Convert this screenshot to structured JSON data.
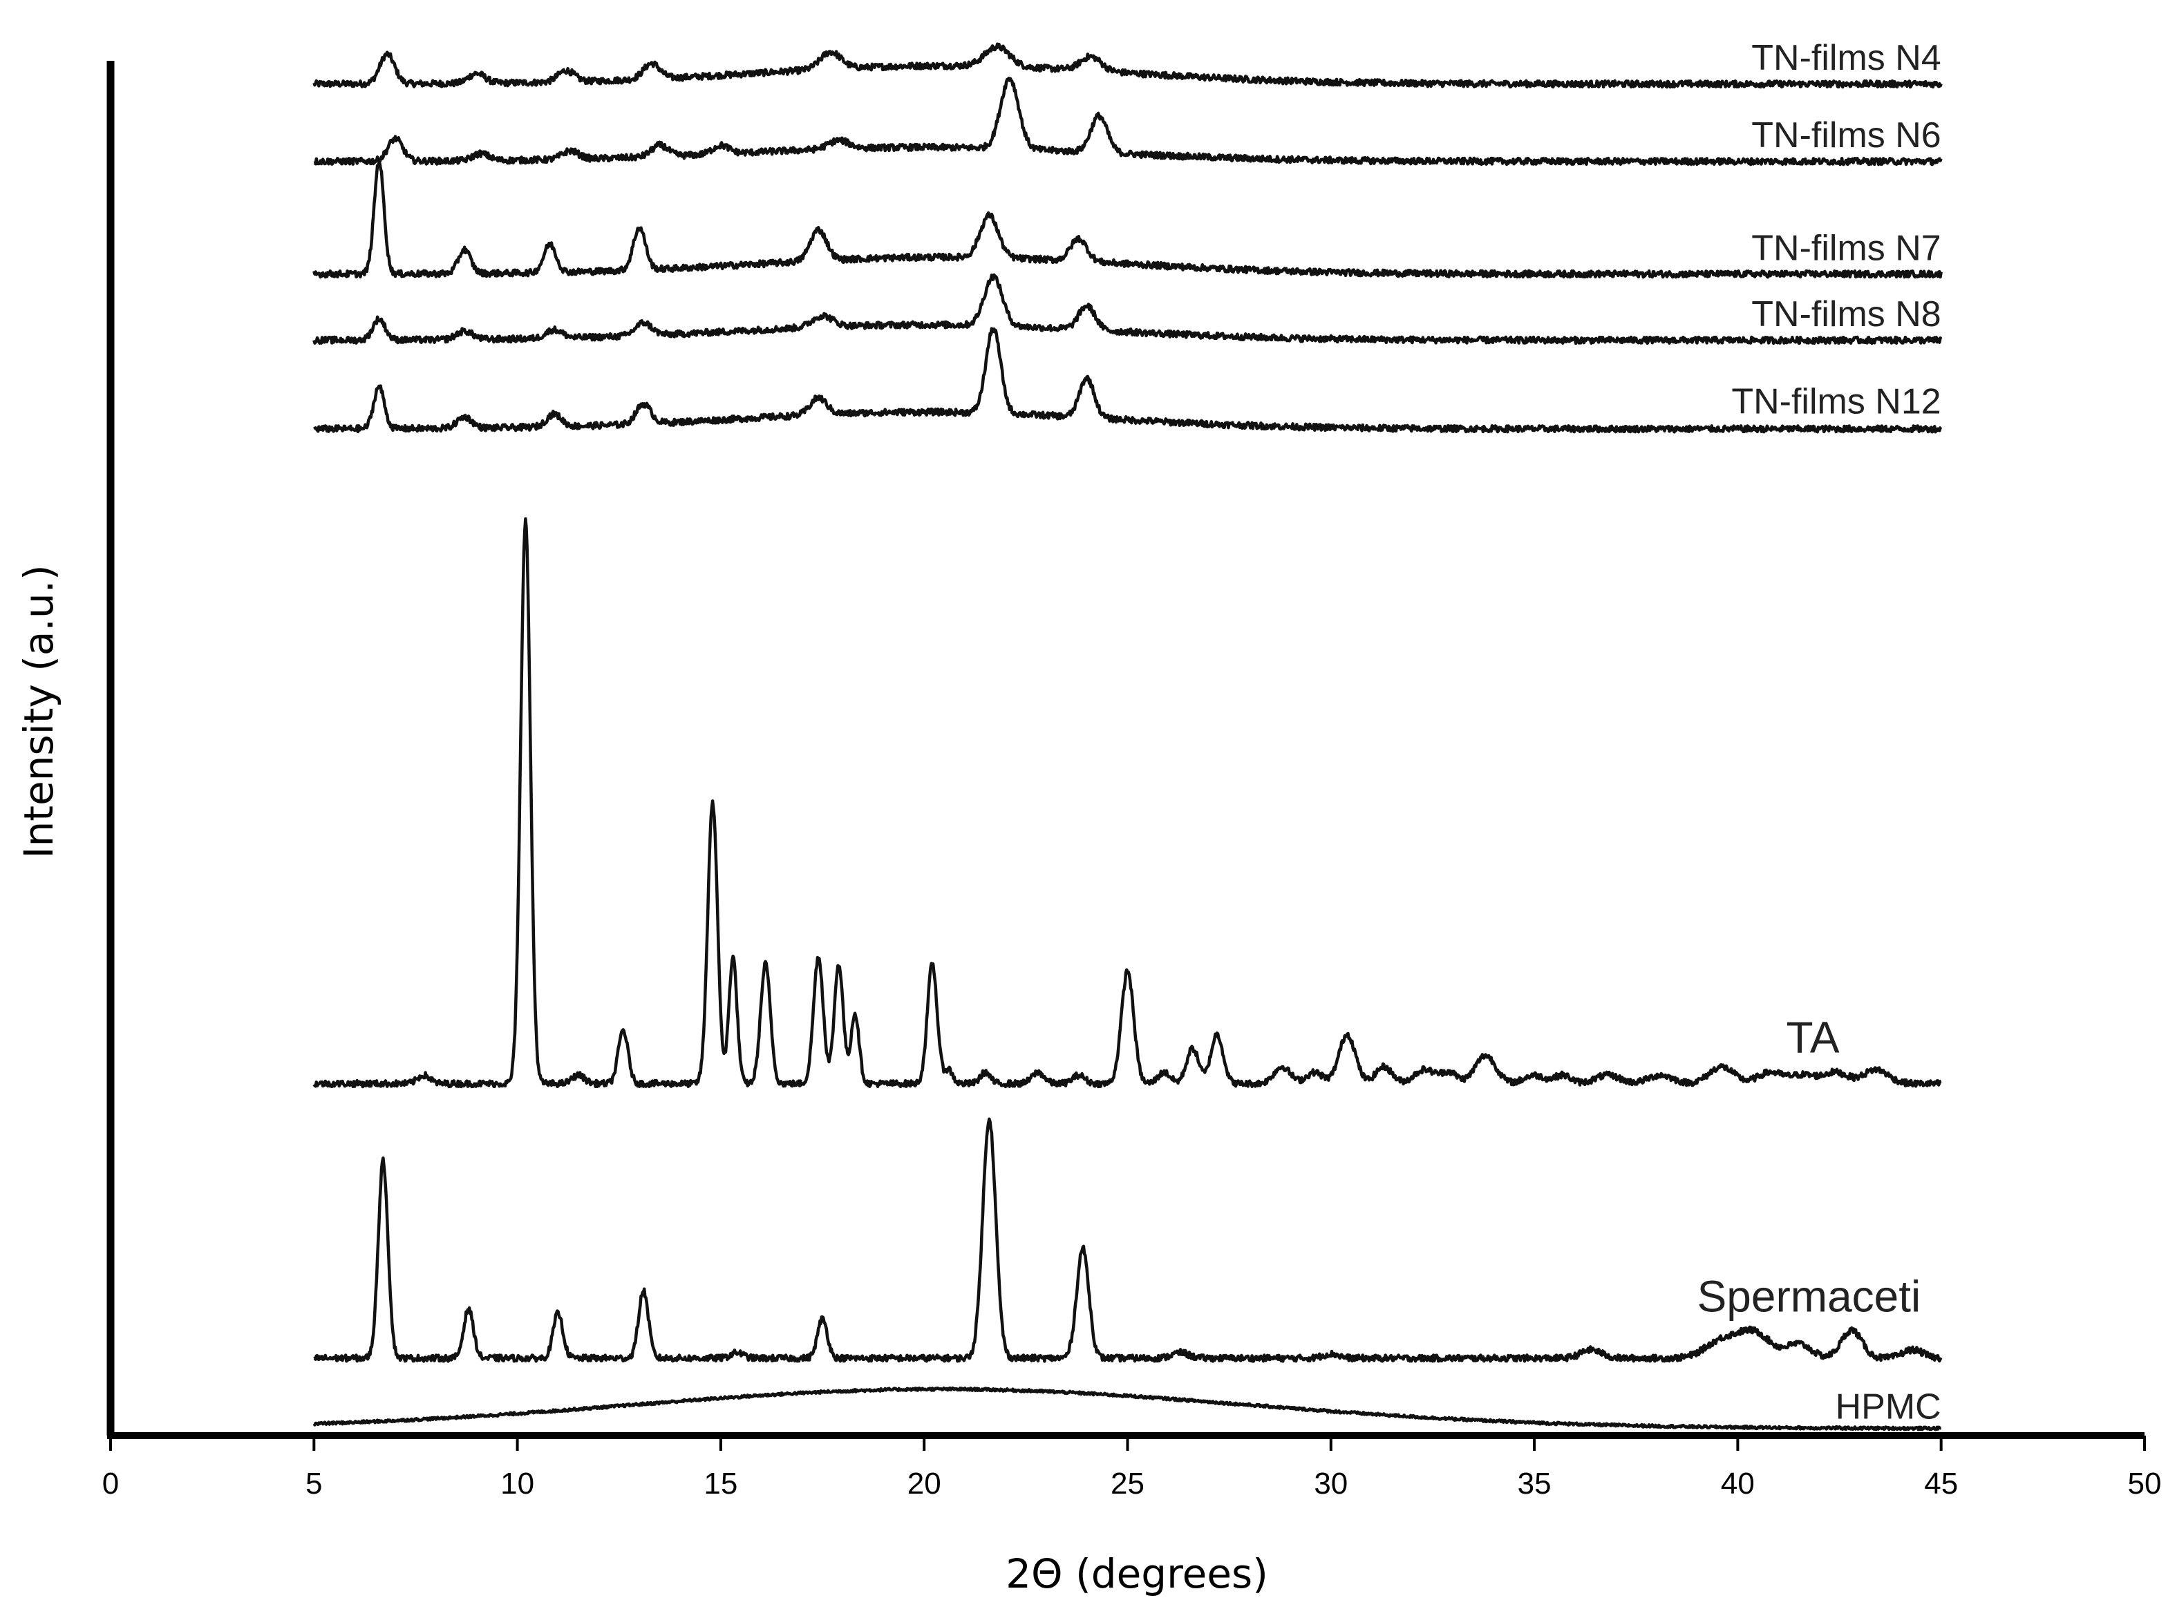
{
  "chart_data": {
    "type": "line",
    "title": "",
    "xlabel": "2Θ (degrees)",
    "ylabel": "Intensity (a.u.)",
    "xlim": [
      0,
      50
    ],
    "xticks": [
      0,
      5,
      10,
      15,
      20,
      25,
      30,
      35,
      40,
      45,
      50
    ],
    "x_range_data": [
      5,
      45
    ],
    "grid": false,
    "legend": "none (series labelled directly at right end of each trace)",
    "y_scale": "arbitrary units, traces vertically offset",
    "series": [
      {
        "name": "TN-films N4",
        "baseline": 0.96,
        "amp": 0.016,
        "noise": 0.0022,
        "halo": {
          "center": 20.5,
          "width": 4.5,
          "height": 0.013
        },
        "peaks": [
          [
            6.8,
            0.021,
            0.18
          ],
          [
            9.0,
            0.007,
            0.2
          ],
          [
            11.2,
            0.008,
            0.2
          ],
          [
            13.3,
            0.011,
            0.2
          ],
          [
            17.7,
            0.012,
            0.25
          ],
          [
            21.8,
            0.014,
            0.3
          ],
          [
            24.1,
            0.01,
            0.25
          ]
        ]
      },
      {
        "name": "TN-films N6",
        "baseline": 0.905,
        "amp": 0.016,
        "noise": 0.0022,
        "halo": {
          "center": 20.0,
          "width": 4.5,
          "height": 0.01
        },
        "peaks": [
          [
            7.0,
            0.016,
            0.18
          ],
          [
            9.1,
            0.005,
            0.2
          ],
          [
            11.3,
            0.006,
            0.2
          ],
          [
            13.5,
            0.008,
            0.2
          ],
          [
            15.0,
            0.006,
            0.2
          ],
          [
            17.9,
            0.006,
            0.25
          ],
          [
            22.1,
            0.05,
            0.22
          ],
          [
            24.3,
            0.026,
            0.2
          ]
        ]
      },
      {
        "name": "TN-films N7",
        "baseline": 0.825,
        "amp": 0.016,
        "noise": 0.0022,
        "halo": {
          "center": 20.5,
          "width": 4.5,
          "height": 0.012
        },
        "peaks": [
          [
            6.6,
            0.08,
            0.12
          ],
          [
            8.7,
            0.017,
            0.15
          ],
          [
            10.8,
            0.02,
            0.15
          ],
          [
            13.0,
            0.03,
            0.15
          ],
          [
            17.4,
            0.022,
            0.2
          ],
          [
            21.6,
            0.03,
            0.22
          ],
          [
            23.8,
            0.016,
            0.2
          ]
        ]
      },
      {
        "name": "TN-films N8",
        "baseline": 0.778,
        "amp": 0.016,
        "noise": 0.0022,
        "halo": {
          "center": 20.0,
          "width": 4.5,
          "height": 0.011
        },
        "peaks": [
          [
            6.6,
            0.015,
            0.15
          ],
          [
            8.7,
            0.006,
            0.2
          ],
          [
            10.9,
            0.006,
            0.2
          ],
          [
            13.1,
            0.009,
            0.2
          ],
          [
            17.5,
            0.008,
            0.25
          ],
          [
            21.7,
            0.035,
            0.22
          ],
          [
            24.0,
            0.017,
            0.2
          ]
        ]
      },
      {
        "name": "TN-films N12",
        "baseline": 0.715,
        "amp": 0.016,
        "noise": 0.0022,
        "halo": {
          "center": 20.0,
          "width": 4.5,
          "height": 0.012
        },
        "peaks": [
          [
            6.6,
            0.03,
            0.13
          ],
          [
            8.7,
            0.008,
            0.18
          ],
          [
            10.9,
            0.009,
            0.18
          ],
          [
            13.1,
            0.014,
            0.18
          ],
          [
            17.4,
            0.012,
            0.2
          ],
          [
            21.7,
            0.06,
            0.18
          ],
          [
            24.0,
            0.028,
            0.18
          ]
        ]
      },
      {
        "name": "TA",
        "baseline": 0.25,
        "amp": 0.4,
        "noise": 0.0022,
        "halo": {
          "center": 20.0,
          "width": 6.0,
          "height": 0.0
        },
        "peaks": [
          [
            7.7,
            0.006,
            0.15
          ],
          [
            10.2,
            0.4,
            0.12
          ],
          [
            11.5,
            0.006,
            0.15
          ],
          [
            12.6,
            0.038,
            0.12
          ],
          [
            14.8,
            0.2,
            0.12
          ],
          [
            15.3,
            0.09,
            0.1
          ],
          [
            16.1,
            0.085,
            0.12
          ],
          [
            17.4,
            0.09,
            0.12
          ],
          [
            17.9,
            0.085,
            0.11
          ],
          [
            18.3,
            0.05,
            0.1
          ],
          [
            20.2,
            0.085,
            0.12
          ],
          [
            20.6,
            0.01,
            0.1
          ],
          [
            21.5,
            0.008,
            0.12
          ],
          [
            22.8,
            0.008,
            0.15
          ],
          [
            23.8,
            0.006,
            0.15
          ],
          [
            25.0,
            0.08,
            0.15
          ],
          [
            25.9,
            0.008,
            0.15
          ],
          [
            26.6,
            0.025,
            0.15
          ],
          [
            27.2,
            0.035,
            0.15
          ],
          [
            28.8,
            0.012,
            0.2
          ],
          [
            29.6,
            0.008,
            0.2
          ],
          [
            30.4,
            0.035,
            0.2
          ],
          [
            31.3,
            0.012,
            0.2
          ],
          [
            32.3,
            0.01,
            0.25
          ],
          [
            32.9,
            0.008,
            0.2
          ],
          [
            33.8,
            0.02,
            0.25
          ],
          [
            35.0,
            0.006,
            0.25
          ],
          [
            35.7,
            0.006,
            0.2
          ],
          [
            36.8,
            0.006,
            0.3
          ],
          [
            38.1,
            0.006,
            0.3
          ],
          [
            39.6,
            0.012,
            0.3
          ],
          [
            40.8,
            0.008,
            0.3
          ],
          [
            41.6,
            0.006,
            0.3
          ],
          [
            42.4,
            0.008,
            0.3
          ],
          [
            43.4,
            0.01,
            0.3
          ]
        ]
      },
      {
        "name": "Spermaceti",
        "baseline": 0.055,
        "amp": 0.17,
        "noise": 0.0022,
        "halo": {
          "center": 20.0,
          "width": 6.0,
          "height": 0.0
        },
        "peaks": [
          [
            6.7,
            0.14,
            0.12
          ],
          [
            8.8,
            0.035,
            0.12
          ],
          [
            11.0,
            0.032,
            0.12
          ],
          [
            13.1,
            0.048,
            0.12
          ],
          [
            15.4,
            0.004,
            0.15
          ],
          [
            17.5,
            0.028,
            0.12
          ],
          [
            21.6,
            0.17,
            0.16
          ],
          [
            23.9,
            0.078,
            0.15
          ],
          [
            26.3,
            0.004,
            0.2
          ],
          [
            30.0,
            0.003,
            0.2
          ],
          [
            36.4,
            0.006,
            0.25
          ],
          [
            39.6,
            0.012,
            0.4
          ],
          [
            40.4,
            0.018,
            0.4
          ],
          [
            41.5,
            0.01,
            0.3
          ],
          [
            42.8,
            0.02,
            0.25
          ],
          [
            44.3,
            0.006,
            0.25
          ]
        ]
      },
      {
        "name": "HPMC",
        "baseline": 0.005,
        "amp": 0.03,
        "noise": 0.0009,
        "halo": {
          "center": 20.4,
          "width": 7.5,
          "height": 0.028
        },
        "peaks": []
      }
    ],
    "labels": [
      {
        "series": "TN-films N4",
        "text": "TN-films N4",
        "x": 45,
        "y": 0.97
      },
      {
        "series": "TN-films N6",
        "text": "TN-films N6",
        "x": 45,
        "y": 0.915
      },
      {
        "series": "TN-films N7",
        "text": "TN-films N7",
        "x": 45,
        "y": 0.835
      },
      {
        "series": "TN-films N8",
        "text": "TN-films N8",
        "x": 45,
        "y": 0.788
      },
      {
        "series": "TN-films N12",
        "text": "TN-films N12",
        "x": 45,
        "y": 0.726
      },
      {
        "series": "TA",
        "text": "TA",
        "x": 42.5,
        "y": 0.272
      },
      {
        "series": "Spermaceti",
        "text": "Spermaceti",
        "x": 44.5,
        "y": 0.088
      },
      {
        "series": "HPMC",
        "text": "HPMC",
        "x": 45,
        "y": 0.012
      }
    ]
  }
}
